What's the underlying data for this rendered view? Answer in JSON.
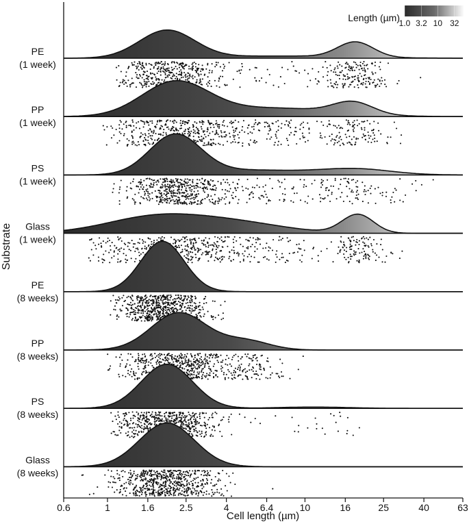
{
  "chart_data": {
    "type": "raincloud",
    "xlabel": "Cell length (µm)",
    "ylabel": "Substrate",
    "x_scale": "log",
    "xlim": [
      0.6,
      63
    ],
    "x_ticks": [
      0.6,
      1,
      1.6,
      2.5,
      4,
      6.4,
      10,
      16,
      25,
      40,
      63
    ],
    "x_tick_labels": [
      "0.6",
      "1",
      "1.6",
      "2.5",
      "4",
      "6.4",
      "10",
      "16",
      "25",
      "40",
      "63"
    ],
    "colorbar": {
      "title": "Length (µm)",
      "tick_values": [
        1.0,
        3.2,
        10,
        32
      ],
      "tick_labels": [
        "1.0",
        "3.2",
        "10",
        "32"
      ],
      "color_low": "#2b2b2b",
      "color_high": "#ffffff"
    },
    "series": [
      {
        "name": "PE",
        "sub": "(1 week)",
        "peak_scale": 0.55,
        "modes": [
          {
            "mu": 2.0,
            "sigma": 0.14,
            "weight": 1.0
          },
          {
            "mu": 18,
            "sigma": 0.09,
            "weight": 0.55
          },
          {
            "mu": 7.5,
            "sigma": 0.35,
            "weight": 0.08
          }
        ],
        "range": [
          1.1,
          45
        ]
      },
      {
        "name": "PP",
        "sub": "(1 week)",
        "peak_scale": 0.7,
        "modes": [
          {
            "mu": 2.2,
            "sigma": 0.17,
            "weight": 1.0
          },
          {
            "mu": 17.5,
            "sigma": 0.1,
            "weight": 0.35
          },
          {
            "mu": 7.0,
            "sigma": 0.3,
            "weight": 0.25
          }
        ],
        "range": [
          0.95,
          33
        ]
      },
      {
        "name": "PS",
        "sub": "(1 week)",
        "peak_scale": 0.8,
        "modes": [
          {
            "mu": 2.2,
            "sigma": 0.13,
            "weight": 1.0
          },
          {
            "mu": 18,
            "sigma": 0.18,
            "weight": 0.15
          },
          {
            "mu": 5.5,
            "sigma": 0.25,
            "weight": 0.12
          }
        ],
        "range": [
          1.0,
          53
        ]
      },
      {
        "name": "Glass",
        "sub": "(1 week)",
        "peak_scale": 0.38,
        "modes": [
          {
            "mu": 1.75,
            "sigma": 0.25,
            "weight": 1.0
          },
          {
            "mu": 18.5,
            "sigma": 0.08,
            "weight": 1.15
          },
          {
            "mu": 4.5,
            "sigma": 0.25,
            "weight": 0.6
          }
        ],
        "range": [
          0.8,
          37
        ]
      },
      {
        "name": "PE",
        "sub": "(8 weeks)",
        "peak_scale": 0.98,
        "modes": [
          {
            "mu": 1.9,
            "sigma": 0.11,
            "weight": 1.0
          }
        ],
        "range": [
          1.0,
          4.5
        ]
      },
      {
        "name": "PP",
        "sub": "(8 weeks)",
        "peak_scale": 0.73,
        "modes": [
          {
            "mu": 2.3,
            "sigma": 0.14,
            "weight": 1.0
          },
          {
            "mu": 5.0,
            "sigma": 0.12,
            "weight": 0.25
          }
        ],
        "range": [
          1.0,
          26
        ]
      },
      {
        "name": "PS",
        "sub": "(8 weeks)",
        "peak_scale": 0.86,
        "modes": [
          {
            "mu": 2.0,
            "sigma": 0.13,
            "weight": 1.0
          },
          {
            "mu": 11,
            "sigma": 0.18,
            "weight": 0.03
          }
        ],
        "range": [
          1.0,
          19
        ]
      },
      {
        "name": "Glass",
        "sub": "(8 weeks)",
        "peak_scale": 0.85,
        "modes": [
          {
            "mu": 2.0,
            "sigma": 0.14,
            "weight": 1.0
          }
        ],
        "range": [
          0.7,
          25
        ]
      }
    ]
  }
}
